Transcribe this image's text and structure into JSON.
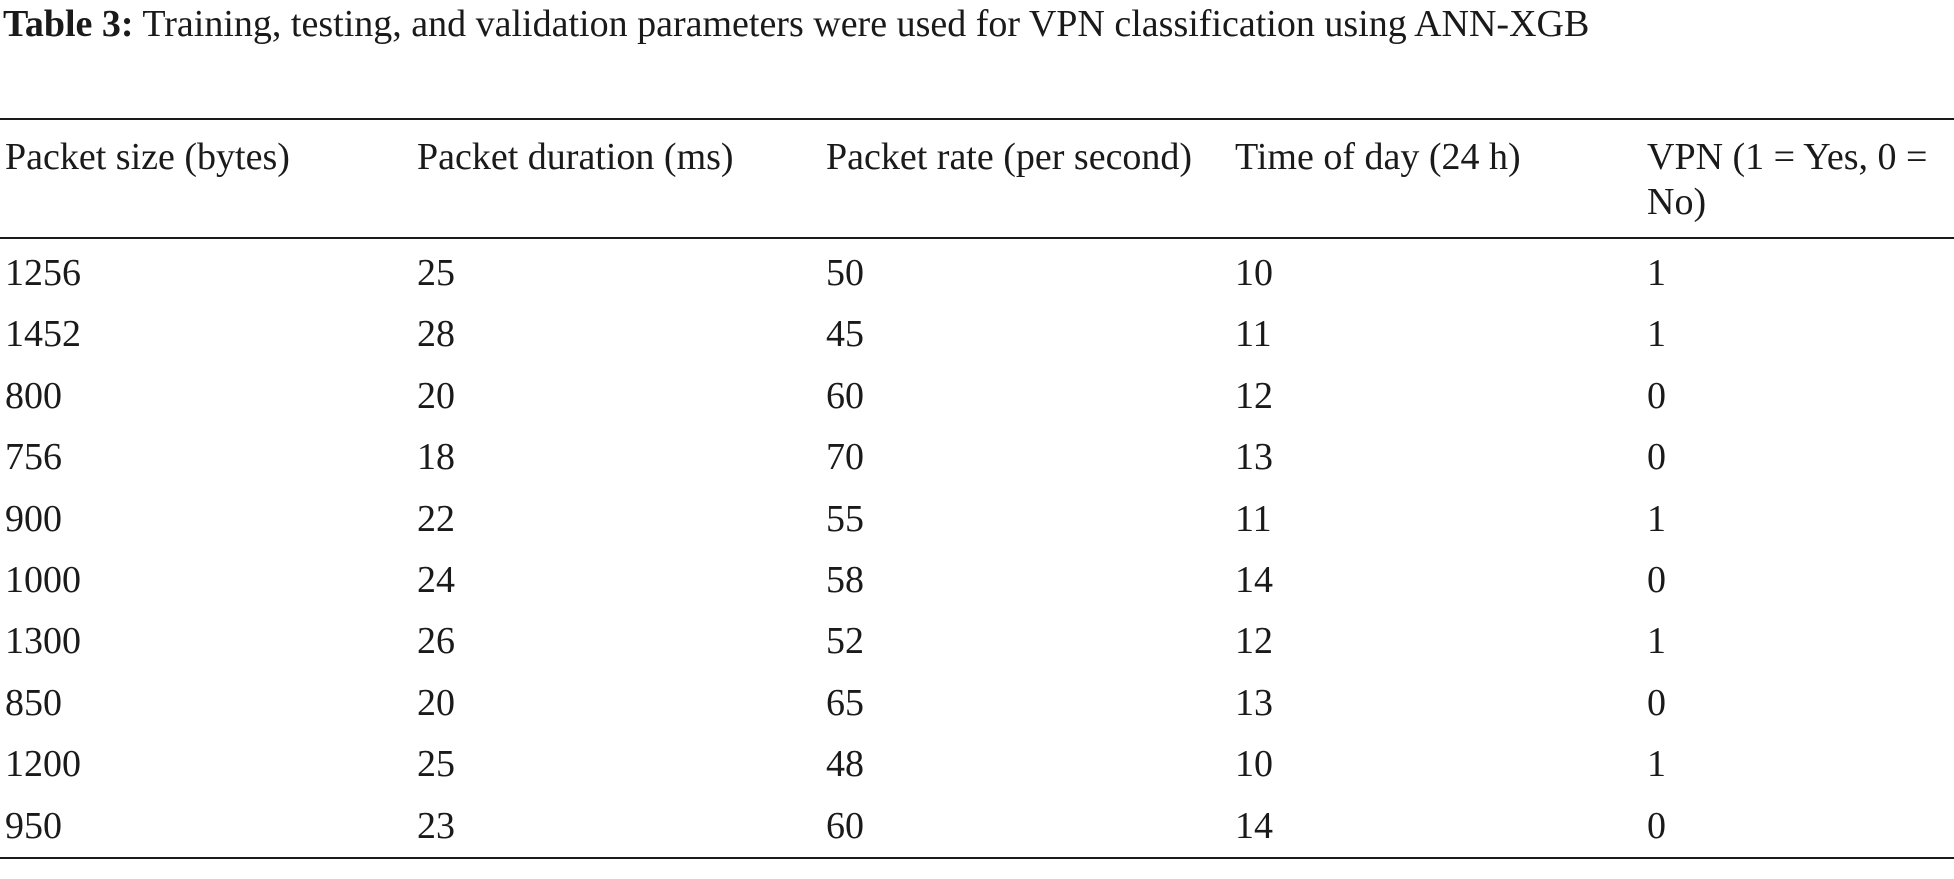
{
  "caption": {
    "label": "Table 3:",
    "text": "Training, testing, and validation parameters were used for VPN classification using ANN-XGB"
  },
  "table": {
    "headers": [
      "Packet size (bytes)",
      "Packet duration (ms)",
      "Packet rate (per second)",
      "Time of day (24 h)",
      "VPN (1 = Yes, 0 = No)"
    ],
    "rows": [
      [
        "1256",
        "25",
        "50",
        "10",
        "1"
      ],
      [
        "1452",
        "28",
        "45",
        "11",
        "1"
      ],
      [
        "800",
        "20",
        "60",
        "12",
        "0"
      ],
      [
        "756",
        "18",
        "70",
        "13",
        "0"
      ],
      [
        "900",
        "22",
        "55",
        "11",
        "1"
      ],
      [
        "1000",
        "24",
        "58",
        "14",
        "0"
      ],
      [
        "1300",
        "26",
        "52",
        "12",
        "1"
      ],
      [
        "850",
        "20",
        "65",
        "13",
        "0"
      ],
      [
        "1200",
        "25",
        "48",
        "10",
        "1"
      ],
      [
        "950",
        "23",
        "60",
        "14",
        "0"
      ]
    ]
  }
}
